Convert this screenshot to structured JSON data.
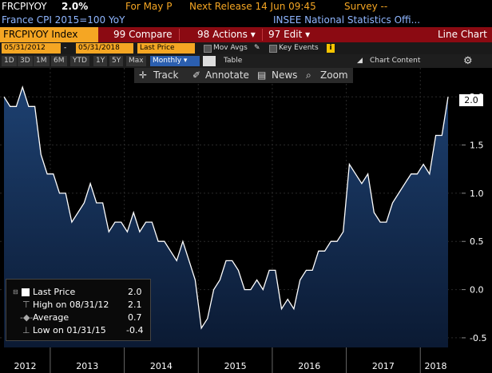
{
  "header": {
    "ticker": "FRCPIYOY",
    "value": "2.0%",
    "for_label": "For May P",
    "next_release": "Next Release 14 Jun 09:45",
    "survey": "Survey --",
    "subtitle": "France CPI 2015=100 YoY",
    "source": "INSEE National Statistics Offi..."
  },
  "toolbar": {
    "index_label": "FRCPIYOY Index",
    "compare_label": "99 Compare",
    "actions_label": "98 Actions",
    "edit_label": "97 Edit",
    "chart_type_label": "Line Chart"
  },
  "dates": {
    "start": "05/31/2012",
    "end": "05/31/2018",
    "field": "Last Price",
    "mov_avgs": "Mov Avgs",
    "key_events": "Key Events"
  },
  "periods": {
    "buttons": [
      "1D",
      "3D",
      "1M",
      "6M",
      "YTD",
      "1Y",
      "5Y",
      "Max"
    ],
    "frequency": "Monthly",
    "table_label": "Table",
    "chart_content_label": "Chart Content"
  },
  "chart_tools": {
    "track": "Track",
    "annotate": "Annotate",
    "news": "News",
    "zoom": "Zoom"
  },
  "legend": {
    "last_price_label": "Last Price",
    "last_price_value": "2.0",
    "high_label": "High on 08/31/12",
    "high_value": "2.1",
    "average_label": "Average",
    "average_value": "0.7",
    "low_label": "Low on 01/31/15",
    "low_value": "-0.4"
  },
  "current_value_tag": "2.0",
  "colors": {
    "line": "#ffffff",
    "fill_top": "#1d4070",
    "fill_bottom": "#0b1a33",
    "toolbar_red": "#8b0a12",
    "amber": "#f5a623"
  },
  "chart_data": {
    "type": "area",
    "ylim": [
      -0.6,
      2.3
    ],
    "yticks": [
      "2.0",
      "1.5",
      "1.0",
      "0.5",
      "0.0",
      "-0.5"
    ],
    "ytick_values": [
      2.0,
      1.5,
      1.0,
      0.5,
      0.0,
      -0.5
    ],
    "xtick_labels": [
      "2012",
      "2013",
      "2014",
      "2015",
      "2016",
      "2017",
      "2018"
    ],
    "x": [
      "2012-05",
      "2012-06",
      "2012-07",
      "2012-08",
      "2012-09",
      "2012-10",
      "2012-11",
      "2012-12",
      "2013-01",
      "2013-02",
      "2013-03",
      "2013-04",
      "2013-05",
      "2013-06",
      "2013-07",
      "2013-08",
      "2013-09",
      "2013-10",
      "2013-11",
      "2013-12",
      "2014-01",
      "2014-02",
      "2014-03",
      "2014-04",
      "2014-05",
      "2014-06",
      "2014-07",
      "2014-08",
      "2014-09",
      "2014-10",
      "2014-11",
      "2014-12",
      "2015-01",
      "2015-02",
      "2015-03",
      "2015-04",
      "2015-05",
      "2015-06",
      "2015-07",
      "2015-08",
      "2015-09",
      "2015-10",
      "2015-11",
      "2015-12",
      "2016-01",
      "2016-02",
      "2016-03",
      "2016-04",
      "2016-05",
      "2016-06",
      "2016-07",
      "2016-08",
      "2016-09",
      "2016-10",
      "2016-11",
      "2016-12",
      "2017-01",
      "2017-02",
      "2017-03",
      "2017-04",
      "2017-05",
      "2017-06",
      "2017-07",
      "2017-08",
      "2017-09",
      "2017-10",
      "2017-11",
      "2017-12",
      "2018-01",
      "2018-02",
      "2018-03",
      "2018-04",
      "2018-05"
    ],
    "values": [
      2.0,
      1.9,
      1.9,
      2.1,
      1.9,
      1.9,
      1.4,
      1.2,
      1.2,
      1.0,
      1.0,
      0.7,
      0.8,
      0.9,
      1.1,
      0.9,
      0.9,
      0.6,
      0.7,
      0.7,
      0.6,
      0.8,
      0.6,
      0.7,
      0.7,
      0.5,
      0.5,
      0.4,
      0.3,
      0.5,
      0.3,
      0.1,
      -0.4,
      -0.3,
      0.0,
      0.1,
      0.3,
      0.3,
      0.2,
      0.0,
      0.0,
      0.1,
      0.0,
      0.2,
      0.2,
      -0.2,
      -0.1,
      -0.2,
      0.1,
      0.2,
      0.2,
      0.4,
      0.4,
      0.5,
      0.5,
      0.6,
      1.3,
      1.2,
      1.1,
      1.2,
      0.8,
      0.7,
      0.7,
      0.9,
      1.0,
      1.1,
      1.2,
      1.2,
      1.3,
      1.2,
      1.6,
      1.6,
      2.0
    ]
  }
}
